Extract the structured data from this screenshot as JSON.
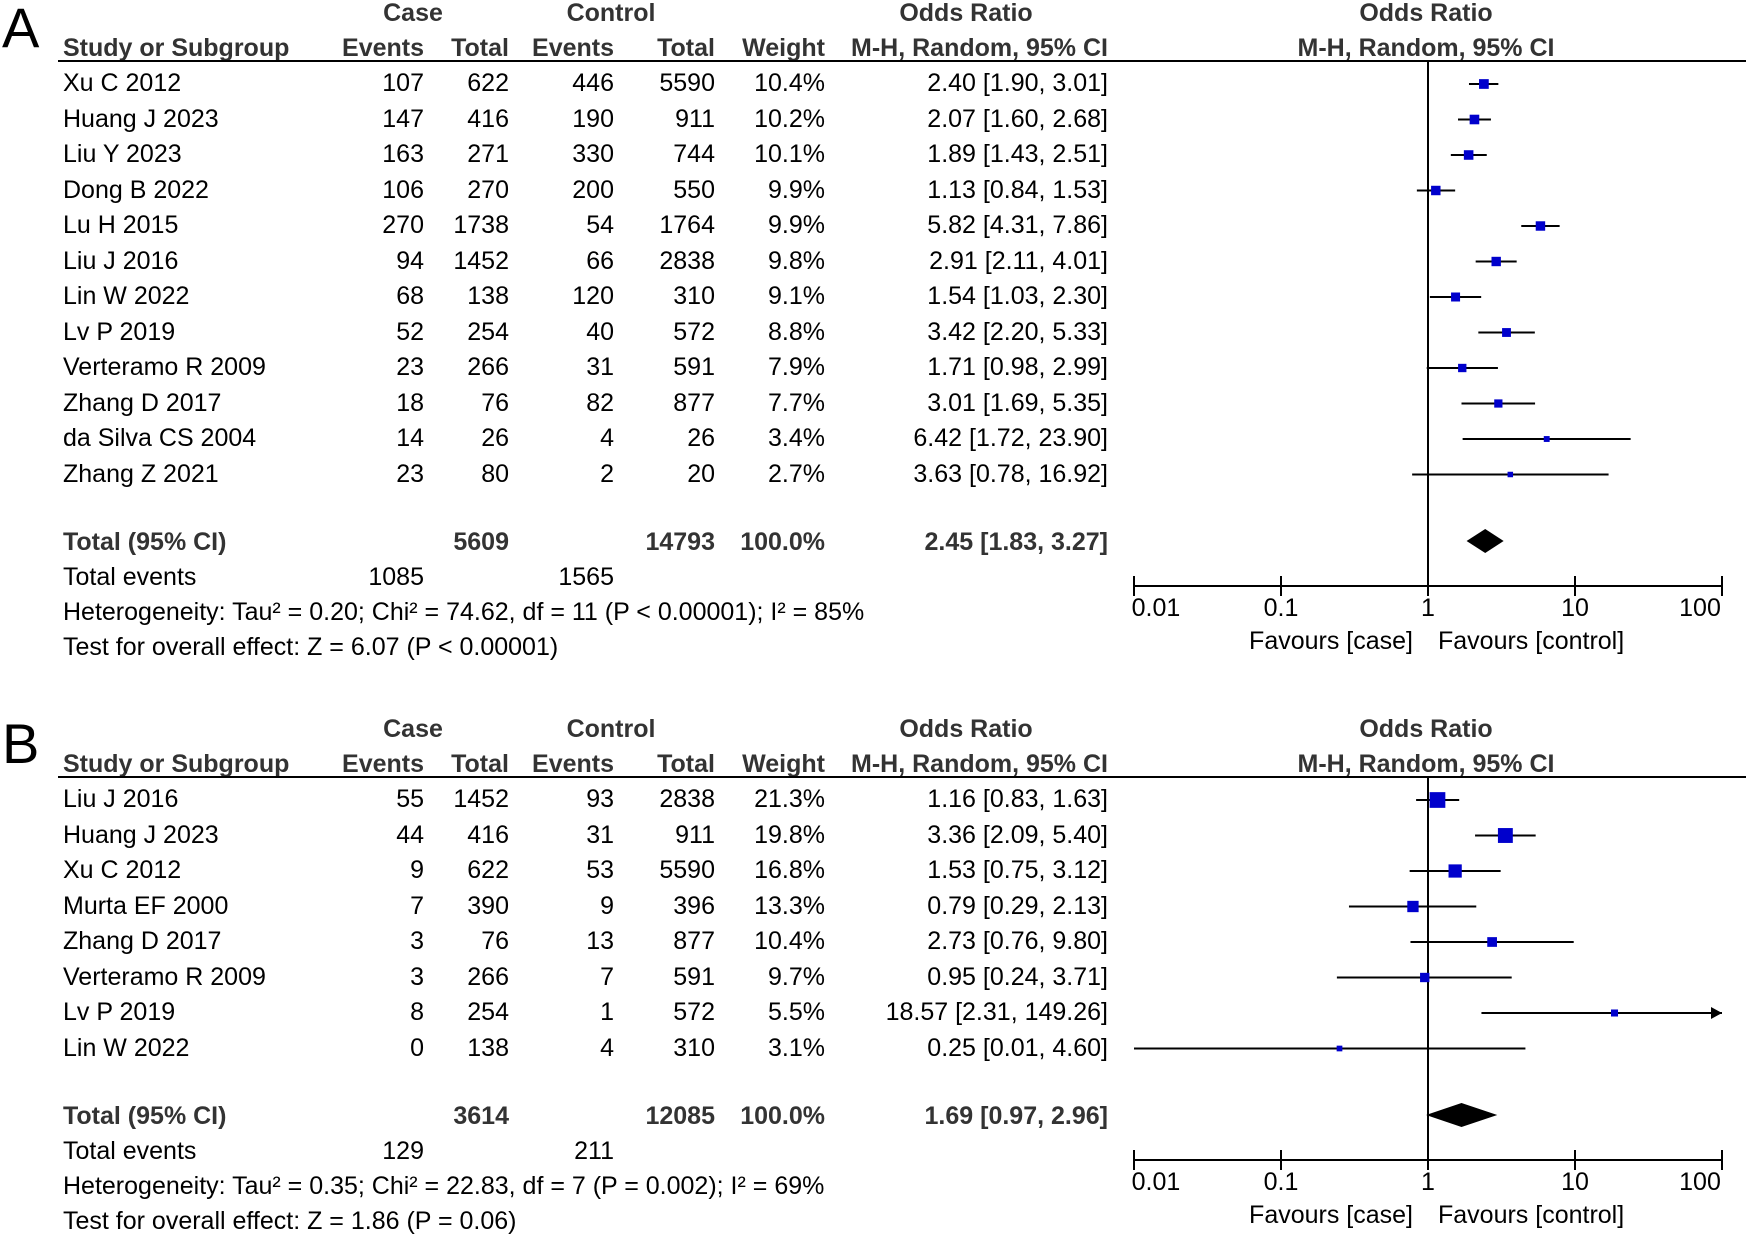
{
  "headers": {
    "case": "Case",
    "control": "Control",
    "odds_ratio": "Odds Ratio",
    "study": "Study or Subgroup",
    "events": "Events",
    "total": "Total",
    "weight": "Weight",
    "method": "M-H, Random, 95% CI",
    "axis_label_left": "Favours [case]",
    "axis_label_right": "Favours [control]",
    "total_events_label": "Total events"
  },
  "chart_data": [
    {
      "type": "forest",
      "panel": "A",
      "xscale": "log",
      "xlim": [
        0.01,
        100
      ],
      "ticks": [
        "0.01",
        "0.1",
        "1",
        "10",
        "100"
      ],
      "studies": [
        {
          "name": "Xu C 2012",
          "case_events": "107",
          "case_total": "622",
          "control_events": "446",
          "control_total": "5590",
          "weight": "10.4%",
          "ci_text": "2.40 [1.90, 3.01]",
          "or": 2.4,
          "lo": 1.9,
          "hi": 3.01,
          "w": 10.4
        },
        {
          "name": "Huang J 2023",
          "case_events": "147",
          "case_total": "416",
          "control_events": "190",
          "control_total": "911",
          "weight": "10.2%",
          "ci_text": "2.07 [1.60, 2.68]",
          "or": 2.07,
          "lo": 1.6,
          "hi": 2.68,
          "w": 10.2
        },
        {
          "name": "Liu Y 2023",
          "case_events": "163",
          "case_total": "271",
          "control_events": "330",
          "control_total": "744",
          "weight": "10.1%",
          "ci_text": "1.89 [1.43, 2.51]",
          "or": 1.89,
          "lo": 1.43,
          "hi": 2.51,
          "w": 10.1
        },
        {
          "name": "Dong B 2022",
          "case_events": "106",
          "case_total": "270",
          "control_events": "200",
          "control_total": "550",
          "weight": "9.9%",
          "ci_text": "1.13 [0.84, 1.53]",
          "or": 1.13,
          "lo": 0.84,
          "hi": 1.53,
          "w": 9.9
        },
        {
          "name": "Lu H 2015",
          "case_events": "270",
          "case_total": "1738",
          "control_events": "54",
          "control_total": "1764",
          "weight": "9.9%",
          "ci_text": "5.82 [4.31, 7.86]",
          "or": 5.82,
          "lo": 4.31,
          "hi": 7.86,
          "w": 9.9
        },
        {
          "name": "Liu J 2016",
          "case_events": "94",
          "case_total": "1452",
          "control_events": "66",
          "control_total": "2838",
          "weight": "9.8%",
          "ci_text": "2.91 [2.11, 4.01]",
          "or": 2.91,
          "lo": 2.11,
          "hi": 4.01,
          "w": 9.8
        },
        {
          "name": "Lin W 2022",
          "case_events": "68",
          "case_total": "138",
          "control_events": "120",
          "control_total": "310",
          "weight": "9.1%",
          "ci_text": "1.54 [1.03, 2.30]",
          "or": 1.54,
          "lo": 1.03,
          "hi": 2.3,
          "w": 9.1
        },
        {
          "name": "Lv P 2019",
          "case_events": "52",
          "case_total": "254",
          "control_events": "40",
          "control_total": "572",
          "weight": "8.8%",
          "ci_text": "3.42 [2.20, 5.33]",
          "or": 3.42,
          "lo": 2.2,
          "hi": 5.33,
          "w": 8.8
        },
        {
          "name": "Verteramo R 2009",
          "case_events": "23",
          "case_total": "266",
          "control_events": "31",
          "control_total": "591",
          "weight": "7.9%",
          "ci_text": "1.71 [0.98, 2.99]",
          "or": 1.71,
          "lo": 0.98,
          "hi": 2.99,
          "w": 7.9
        },
        {
          "name": "Zhang D 2017",
          "case_events": "18",
          "case_total": "76",
          "control_events": "82",
          "control_total": "877",
          "weight": "7.7%",
          "ci_text": "3.01 [1.69, 5.35]",
          "or": 3.01,
          "lo": 1.69,
          "hi": 5.35,
          "w": 7.7
        },
        {
          "name": "da Silva CS 2004",
          "case_events": "14",
          "case_total": "26",
          "control_events": "4",
          "control_total": "26",
          "weight": "3.4%",
          "ci_text": "6.42 [1.72, 23.90]",
          "or": 6.42,
          "lo": 1.72,
          "hi": 23.9,
          "w": 3.4
        },
        {
          "name": "Zhang Z 2021",
          "case_events": "23",
          "case_total": "80",
          "control_events": "2",
          "control_total": "20",
          "weight": "2.7%",
          "ci_text": "3.63 [0.78, 16.92]",
          "or": 3.63,
          "lo": 0.78,
          "hi": 16.92,
          "w": 2.7
        }
      ],
      "total": {
        "label": "Total (95% CI)",
        "case_total": "5609",
        "control_total": "14793",
        "weight": "100.0%",
        "ci_text": "2.45 [1.83, 3.27]",
        "or": 2.45,
        "lo": 1.83,
        "hi": 3.27
      },
      "total_events": {
        "case": "1085",
        "control": "1565"
      },
      "heterogeneity": "Heterogeneity: Tau² = 0.20; Chi² = 74.62, df = 11 (P < 0.00001); I² = 85%",
      "overall_effect": "Test for overall effect: Z = 6.07 (P < 0.00001)"
    },
    {
      "type": "forest",
      "panel": "B",
      "xscale": "log",
      "xlim": [
        0.01,
        100
      ],
      "ticks": [
        "0.01",
        "0.1",
        "1",
        "10",
        "100"
      ],
      "studies": [
        {
          "name": "Liu J 2016",
          "case_events": "55",
          "case_total": "1452",
          "control_events": "93",
          "control_total": "2838",
          "weight": "21.3%",
          "ci_text": "1.16 [0.83, 1.63]",
          "or": 1.16,
          "lo": 0.83,
          "hi": 1.63,
          "w": 21.3
        },
        {
          "name": "Huang J 2023",
          "case_events": "44",
          "case_total": "416",
          "control_events": "31",
          "control_total": "911",
          "weight": "19.8%",
          "ci_text": "3.36 [2.09, 5.40]",
          "or": 3.36,
          "lo": 2.09,
          "hi": 5.4,
          "w": 19.8
        },
        {
          "name": "Xu C 2012",
          "case_events": "9",
          "case_total": "622",
          "control_events": "53",
          "control_total": "5590",
          "weight": "16.8%",
          "ci_text": "1.53 [0.75, 3.12]",
          "or": 1.53,
          "lo": 0.75,
          "hi": 3.12,
          "w": 16.8
        },
        {
          "name": "Murta EF 2000",
          "case_events": "7",
          "case_total": "390",
          "control_events": "9",
          "control_total": "396",
          "weight": "13.3%",
          "ci_text": "0.79 [0.29, 2.13]",
          "or": 0.79,
          "lo": 0.29,
          "hi": 2.13,
          "w": 13.3
        },
        {
          "name": "Zhang D 2017",
          "case_events": "3",
          "case_total": "76",
          "control_events": "13",
          "control_total": "877",
          "weight": "10.4%",
          "ci_text": "2.73 [0.76, 9.80]",
          "or": 2.73,
          "lo": 0.76,
          "hi": 9.8,
          "w": 10.4
        },
        {
          "name": "Verteramo R 2009",
          "case_events": "3",
          "case_total": "266",
          "control_events": "7",
          "control_total": "591",
          "weight": "9.7%",
          "ci_text": "0.95 [0.24, 3.71]",
          "or": 0.95,
          "lo": 0.24,
          "hi": 3.71,
          "w": 9.7
        },
        {
          "name": "Lv P 2019",
          "case_events": "8",
          "case_total": "254",
          "control_events": "1",
          "control_total": "572",
          "weight": "5.5%",
          "ci_text": "18.57 [2.31, 149.26]",
          "or": 18.57,
          "lo": 2.31,
          "hi": 149.26,
          "w": 5.5
        },
        {
          "name": "Lin W 2022",
          "case_events": "0",
          "case_total": "138",
          "control_events": "4",
          "control_total": "310",
          "weight": "3.1%",
          "ci_text": "0.25 [0.01, 4.60]",
          "or": 0.25,
          "lo": 0.01,
          "hi": 4.6,
          "w": 3.1
        }
      ],
      "total": {
        "label": "Total (95% CI)",
        "case_total": "3614",
        "control_total": "12085",
        "weight": "100.0%",
        "ci_text": "1.69 [0.97, 2.96]",
        "or": 1.69,
        "lo": 0.97,
        "hi": 2.96
      },
      "total_events": {
        "case": "129",
        "control": "211"
      },
      "heterogeneity": "Heterogeneity: Tau² = 0.35; Chi² = 22.83, df = 7 (P = 0.002); I² = 69%",
      "overall_effect": "Test for overall effect: Z = 1.86 (P = 0.06)"
    }
  ],
  "colors": {
    "marker": "#0000cc",
    "diamond": "#000000",
    "header_text": "#333333"
  }
}
